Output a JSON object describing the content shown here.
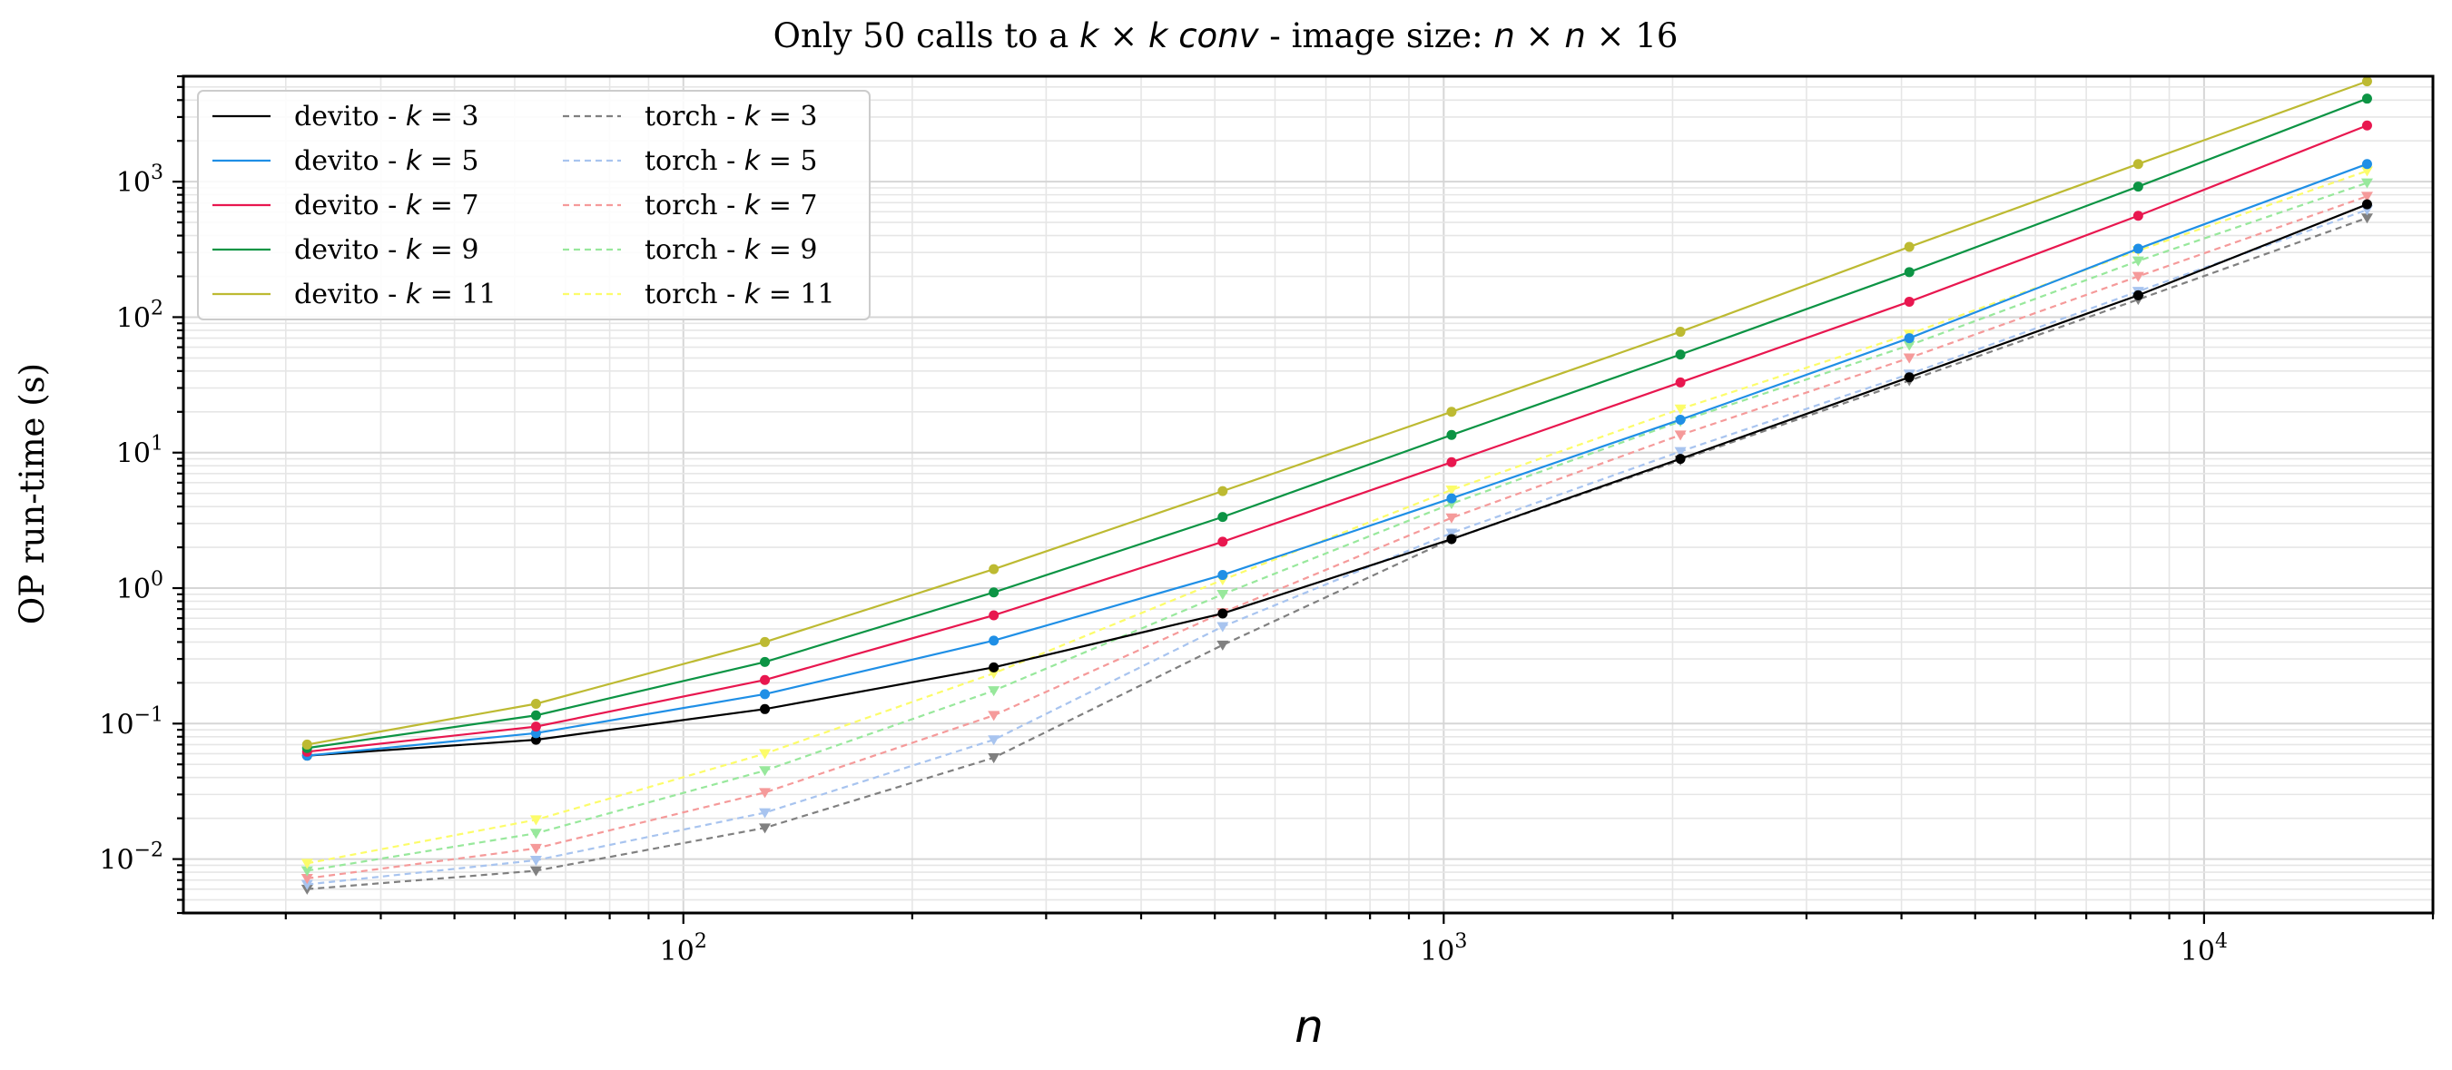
{
  "title": "Only 50 calls to a k × k conv - image size: n × n × 16",
  "chart_data": {
    "type": "line",
    "title": "Only 50 calls to a k × k conv - image size: n × n × 16",
    "xlabel": "n",
    "ylabel": "OP run-time (s)",
    "xscale": "log",
    "yscale": "log",
    "xlim": [
      22,
      20000
    ],
    "ylim": [
      0.004,
      6000
    ],
    "grid": true,
    "legend_position": "top-left",
    "legend_columns": 2,
    "x_ticks": [
      {
        "value": 100,
        "base": "10",
        "exp": "2"
      },
      {
        "value": 1000,
        "base": "10",
        "exp": "3"
      },
      {
        "value": 10000,
        "base": "10",
        "exp": "4"
      }
    ],
    "y_ticks": [
      {
        "value": 0.01,
        "base": "10",
        "exp": "−2"
      },
      {
        "value": 0.1,
        "base": "10",
        "exp": "−1"
      },
      {
        "value": 1,
        "base": "10",
        "exp": "0"
      },
      {
        "value": 10,
        "base": "10",
        "exp": "1"
      },
      {
        "value": 100,
        "base": "10",
        "exp": "2"
      },
      {
        "value": 1000,
        "base": "10",
        "exp": "3"
      }
    ],
    "x": [
      32,
      64,
      128,
      256,
      512,
      1024,
      2048,
      4096,
      8192,
      16384
    ],
    "series": [
      {
        "name": "devito - k = 3",
        "color": "#000000",
        "dash": "solid",
        "marker": "circle",
        "values": [
          0.058,
          0.076,
          0.128,
          0.26,
          0.65,
          2.3,
          9.0,
          36,
          145,
          680
        ]
      },
      {
        "name": "devito - k = 5",
        "color": "#1f8fe6",
        "dash": "solid",
        "marker": "circle",
        "values": [
          0.058,
          0.085,
          0.165,
          0.41,
          1.25,
          4.6,
          17.5,
          70,
          320,
          1350
        ]
      },
      {
        "name": "devito - k = 7",
        "color": "#e8174f",
        "dash": "solid",
        "marker": "circle",
        "values": [
          0.062,
          0.095,
          0.21,
          0.63,
          2.2,
          8.5,
          33,
          130,
          560,
          2600
        ]
      },
      {
        "name": "devito - k = 9",
        "color": "#0c9444",
        "dash": "solid",
        "marker": "circle",
        "values": [
          0.066,
          0.115,
          0.285,
          0.93,
          3.35,
          13.5,
          53,
          215,
          920,
          4100
        ]
      },
      {
        "name": "devito - k = 11",
        "color": "#bdba32",
        "dash": "solid",
        "marker": "circle",
        "values": [
          0.07,
          0.14,
          0.4,
          1.38,
          5.2,
          20,
          78,
          330,
          1350,
          5500
        ]
      },
      {
        "name": "torch - k = 3",
        "color": "#808080",
        "dash": "dashed",
        "marker": "triangle-down",
        "values": [
          0.006,
          0.0082,
          0.017,
          0.056,
          0.38,
          2.3,
          8.8,
          34,
          135,
          540
        ]
      },
      {
        "name": "torch - k = 5",
        "color": "#a8c4ef",
        "dash": "dashed",
        "marker": "triangle-down",
        "values": [
          0.0065,
          0.0098,
          0.022,
          0.076,
          0.52,
          2.55,
          10.2,
          38,
          155,
          620
        ]
      },
      {
        "name": "torch - k = 7",
        "color": "#f59a9a",
        "dash": "dashed",
        "marker": "triangle-down",
        "values": [
          0.0072,
          0.012,
          0.031,
          0.115,
          0.66,
          3.3,
          13.5,
          50,
          200,
          780
        ]
      },
      {
        "name": "torch - k = 9",
        "color": "#98e89c",
        "dash": "dashed",
        "marker": "triangle-down",
        "values": [
          0.0082,
          0.0155,
          0.045,
          0.175,
          0.9,
          4.2,
          17,
          62,
          260,
          980
        ]
      },
      {
        "name": "torch - k = 11",
        "color": "#fcfc6a",
        "dash": "dashed",
        "marker": "triangle-down",
        "values": [
          0.0093,
          0.0195,
          0.06,
          0.235,
          1.15,
          5.3,
          21,
          75,
          310,
          1200
        ]
      }
    ]
  }
}
